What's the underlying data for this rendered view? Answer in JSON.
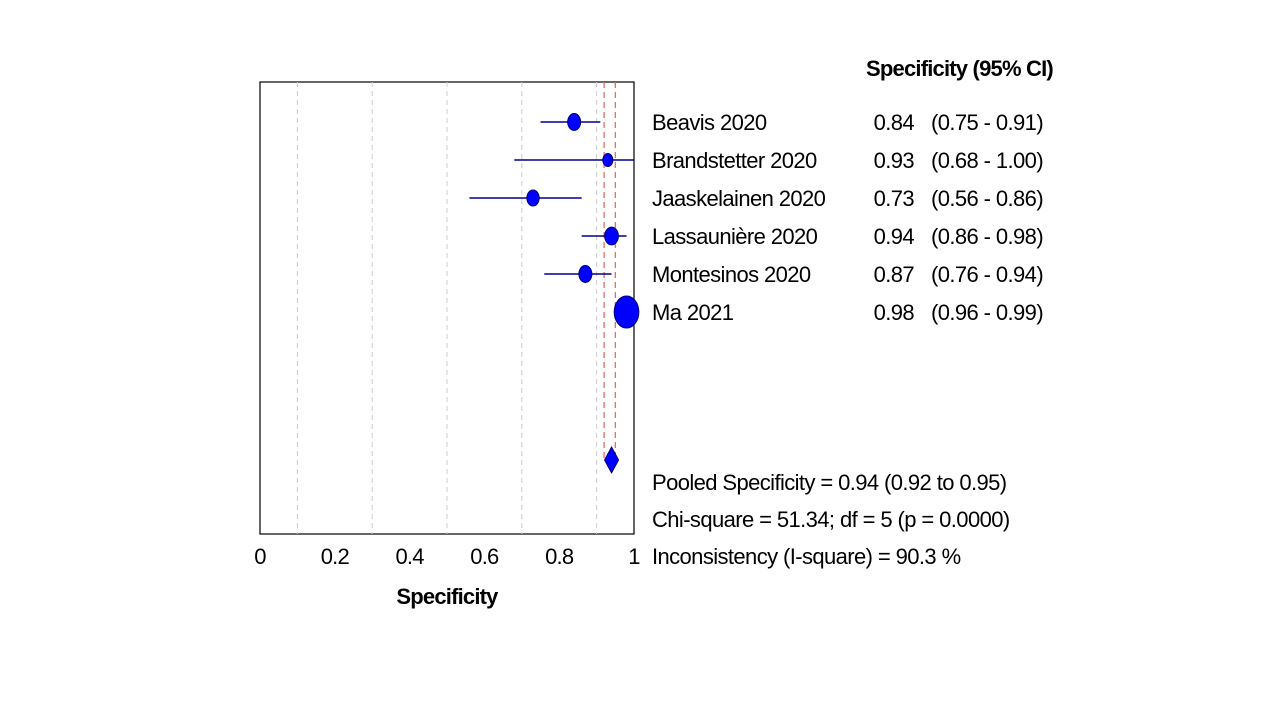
{
  "chart_data": {
    "type": "forest",
    "xlabel": "Specificity",
    "xlim": [
      0,
      1
    ],
    "x_ticks": [
      0,
      0.2,
      0.4,
      0.6,
      0.8,
      1
    ],
    "x_tick_labels": [
      "0",
      "0.2",
      "0.4",
      "0.6",
      "0.8",
      "1"
    ],
    "minor_gridlines": [
      0.1,
      0.3,
      0.5,
      0.7,
      0.9
    ],
    "column_header": "Specificity (95% CI)",
    "studies": [
      {
        "name": "Beavis 2020",
        "estimate": 0.84,
        "ci_low": 0.75,
        "ci_high": 0.91,
        "estimate_label": "0.84",
        "ci_label": "(0.75 - 0.91)",
        "weight": 1.0
      },
      {
        "name": "Brandstetter 2020",
        "estimate": 0.93,
        "ci_low": 0.68,
        "ci_high": 1.0,
        "estimate_label": "0.93",
        "ci_label": "(0.68 - 1.00)",
        "weight": 0.6
      },
      {
        "name": "Jaaskelainen 2020",
        "estimate": 0.73,
        "ci_low": 0.56,
        "ci_high": 0.86,
        "estimate_label": "0.73",
        "ci_label": "(0.56 - 0.86)",
        "weight": 0.9
      },
      {
        "name": "Lassaunière 2020",
        "estimate": 0.94,
        "ci_low": 0.86,
        "ci_high": 0.98,
        "estimate_label": "0.94",
        "ci_label": "(0.86 - 0.98)",
        "weight": 1.1
      },
      {
        "name": "Montesinos 2020",
        "estimate": 0.87,
        "ci_low": 0.76,
        "ci_high": 0.94,
        "estimate_label": "0.87",
        "ci_label": "(0.76 - 0.94)",
        "weight": 1.0
      },
      {
        "name": "Ma 2021",
        "estimate": 0.98,
        "ci_low": 0.96,
        "ci_high": 0.99,
        "estimate_label": "0.98",
        "ci_label": "(0.96 - 0.99)",
        "weight": 3.6
      }
    ],
    "pooled": {
      "estimate": 0.94,
      "ci_low": 0.92,
      "ci_high": 0.95
    },
    "summary_lines": [
      "Pooled Specificity = 0.94 (0.92 to 0.95)",
      "Chi-square = 51.34; df =  5 (p = 0.0000)",
      "Inconsistency (I-square) = 90.3 %"
    ],
    "colors": {
      "marker": "#0000ff",
      "marker_stroke": "#00007a",
      "ci_line": "#00008b",
      "pooled_reference": "#e06060",
      "gridline": "#cccccc",
      "axis": "#000000"
    }
  }
}
